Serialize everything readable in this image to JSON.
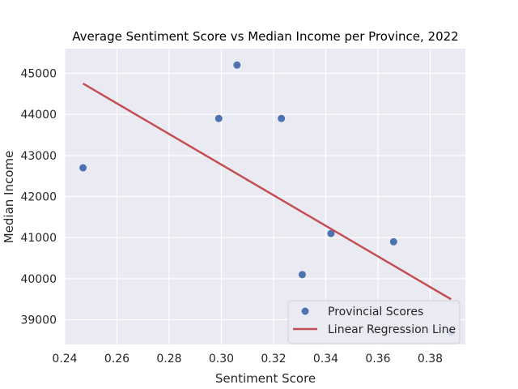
{
  "chart_data": {
    "type": "scatter",
    "title": "Average Sentiment Score vs Median Income per Province, 2022",
    "xlabel": "Sentiment Score",
    "ylabel": "Median Income",
    "xlim": [
      0.24,
      0.3935
    ],
    "ylim": [
      38400,
      45600
    ],
    "xticks": [
      "0.24",
      "0.26",
      "0.28",
      "0.30",
      "0.32",
      "0.34",
      "0.36",
      "0.38"
    ],
    "xtick_values": [
      0.24,
      0.26,
      0.28,
      0.3,
      0.32,
      0.34,
      0.36,
      0.38
    ],
    "yticks": [
      "39000",
      "40000",
      "41000",
      "42000",
      "43000",
      "44000",
      "45000"
    ],
    "ytick_values": [
      39000,
      40000,
      41000,
      42000,
      43000,
      44000,
      45000
    ],
    "grid": true,
    "legend_position": "lower-right",
    "series": [
      {
        "name": "Provincial Scores",
        "kind": "scatter",
        "color": "#4c72b0",
        "points": [
          {
            "x": 0.247,
            "y": 42700
          },
          {
            "x": 0.299,
            "y": 43900
          },
          {
            "x": 0.306,
            "y": 45200
          },
          {
            "x": 0.323,
            "y": 43900
          },
          {
            "x": 0.331,
            "y": 40100
          },
          {
            "x": 0.342,
            "y": 41100
          },
          {
            "x": 0.366,
            "y": 40900
          },
          {
            "x": 0.388,
            "y": 38700
          }
        ]
      },
      {
        "name": "Linear Regression Line",
        "kind": "line",
        "color": "#c44e52",
        "points": [
          {
            "x": 0.247,
            "y": 44750
          },
          {
            "x": 0.388,
            "y": 39500
          }
        ]
      }
    ],
    "background_color": "#eaeaf2",
    "grid_color": "#ffffff"
  }
}
